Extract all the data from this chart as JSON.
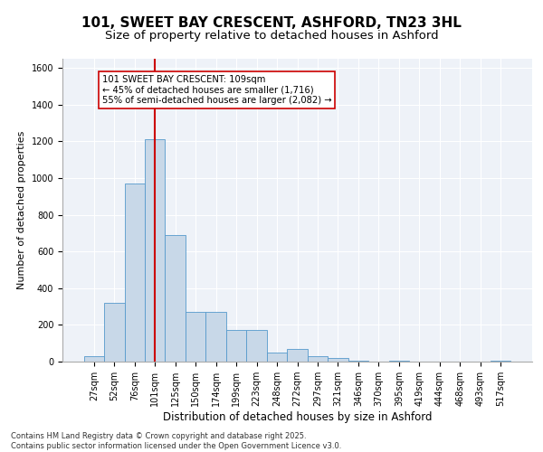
{
  "title1": "101, SWEET BAY CRESCENT, ASHFORD, TN23 3HL",
  "title2": "Size of property relative to detached houses in Ashford",
  "xlabel": "Distribution of detached houses by size in Ashford",
  "ylabel": "Number of detached properties",
  "categories": [
    "27sqm",
    "52sqm",
    "76sqm",
    "101sqm",
    "125sqm",
    "150sqm",
    "174sqm",
    "199sqm",
    "223sqm",
    "248sqm",
    "272sqm",
    "297sqm",
    "321sqm",
    "346sqm",
    "370sqm",
    "395sqm",
    "419sqm",
    "444sqm",
    "468sqm",
    "493sqm",
    "517sqm"
  ],
  "values": [
    30,
    320,
    970,
    1210,
    690,
    270,
    270,
    170,
    170,
    50,
    70,
    30,
    20,
    5,
    2,
    5,
    2,
    1,
    2,
    2,
    5
  ],
  "bar_color": "#c8d8e8",
  "bar_edge_color": "#5599cc",
  "vline_x_index": 3,
  "vline_color": "#cc0000",
  "annotation_text": "101 SWEET BAY CRESCENT: 109sqm\n← 45% of detached houses are smaller (1,716)\n55% of semi-detached houses are larger (2,082) →",
  "annotation_box_color": "#ffffff",
  "annotation_box_edge": "#cc0000",
  "ylim": [
    0,
    1650
  ],
  "yticks": [
    0,
    200,
    400,
    600,
    800,
    1000,
    1200,
    1400,
    1600
  ],
  "footer1": "Contains HM Land Registry data © Crown copyright and database right 2025.",
  "footer2": "Contains public sector information licensed under the Open Government Licence v3.0.",
  "bg_color": "#eef2f8",
  "fig_bg_color": "#ffffff",
  "title1_fontsize": 11,
  "title2_fontsize": 9.5,
  "annotation_fontsize": 7.2,
  "xlabel_fontsize": 8.5,
  "ylabel_fontsize": 8,
  "tick_fontsize": 7,
  "footer_fontsize": 6
}
